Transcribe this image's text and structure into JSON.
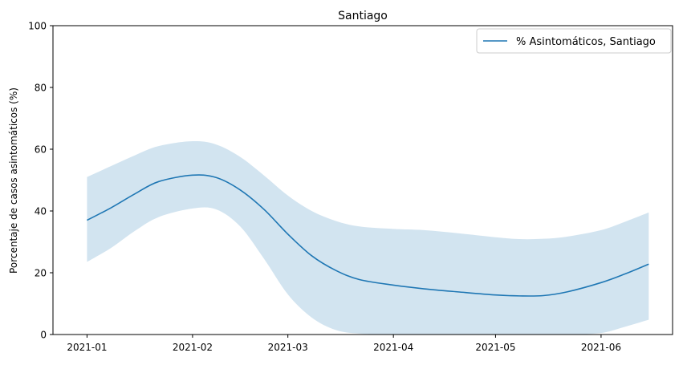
{
  "chart_data": {
    "type": "line",
    "title": "Santiago",
    "xlabel": "",
    "ylabel": "Porcentaje de casos asintomáticos (%)",
    "ylim": [
      0,
      100
    ],
    "xlim": [
      "2020-12-22",
      "2021-06-22"
    ],
    "x_ticks": [
      "2021-01-01",
      "2021-02-01",
      "2021-03-01",
      "2021-04-01",
      "2021-05-01",
      "2021-06-01"
    ],
    "x_tick_labels": [
      "2021-01",
      "2021-02",
      "2021-03",
      "2021-04",
      "2021-05",
      "2021-06"
    ],
    "y_ticks": [
      0,
      20,
      40,
      60,
      80,
      100
    ],
    "y_tick_labels": [
      "0",
      "20",
      "40",
      "60",
      "80",
      "100"
    ],
    "legend_position": "top-right",
    "grid": false,
    "series": [
      {
        "name": "% Asintomáticos, Santiago",
        "color": "#1f77b4",
        "band_color": "#1f77b4",
        "x": [
          "2021-01-01",
          "2021-01-08",
          "2021-01-15",
          "2021-01-22",
          "2021-02-01",
          "2021-02-08",
          "2021-02-15",
          "2021-02-22",
          "2021-03-01",
          "2021-03-08",
          "2021-03-15",
          "2021-03-22",
          "2021-04-01",
          "2021-04-10",
          "2021-04-20",
          "2021-05-01",
          "2021-05-08",
          "2021-05-15",
          "2021-05-22",
          "2021-06-01",
          "2021-06-08",
          "2021-06-15"
        ],
        "values": [
          37.0,
          41.0,
          45.5,
          49.5,
          51.6,
          50.8,
          46.8,
          40.5,
          32.5,
          25.5,
          20.8,
          17.8,
          16.0,
          14.8,
          13.8,
          12.8,
          12.5,
          12.6,
          13.8,
          16.8,
          19.6,
          22.8
        ],
        "lower": [
          23.5,
          28.0,
          33.5,
          38.0,
          40.8,
          40.5,
          35.0,
          24.5,
          13.0,
          5.5,
          1.5,
          0.3,
          0.0,
          0.0,
          0.0,
          0.0,
          0.0,
          0.0,
          0.0,
          0.5,
          2.5,
          4.8
        ],
        "upper": [
          51.0,
          54.5,
          58.0,
          61.0,
          62.6,
          61.5,
          57.5,
          51.5,
          45.0,
          40.0,
          36.8,
          35.0,
          34.2,
          33.8,
          32.8,
          31.5,
          30.9,
          31.0,
          31.7,
          33.8,
          36.5,
          39.5
        ]
      }
    ]
  }
}
